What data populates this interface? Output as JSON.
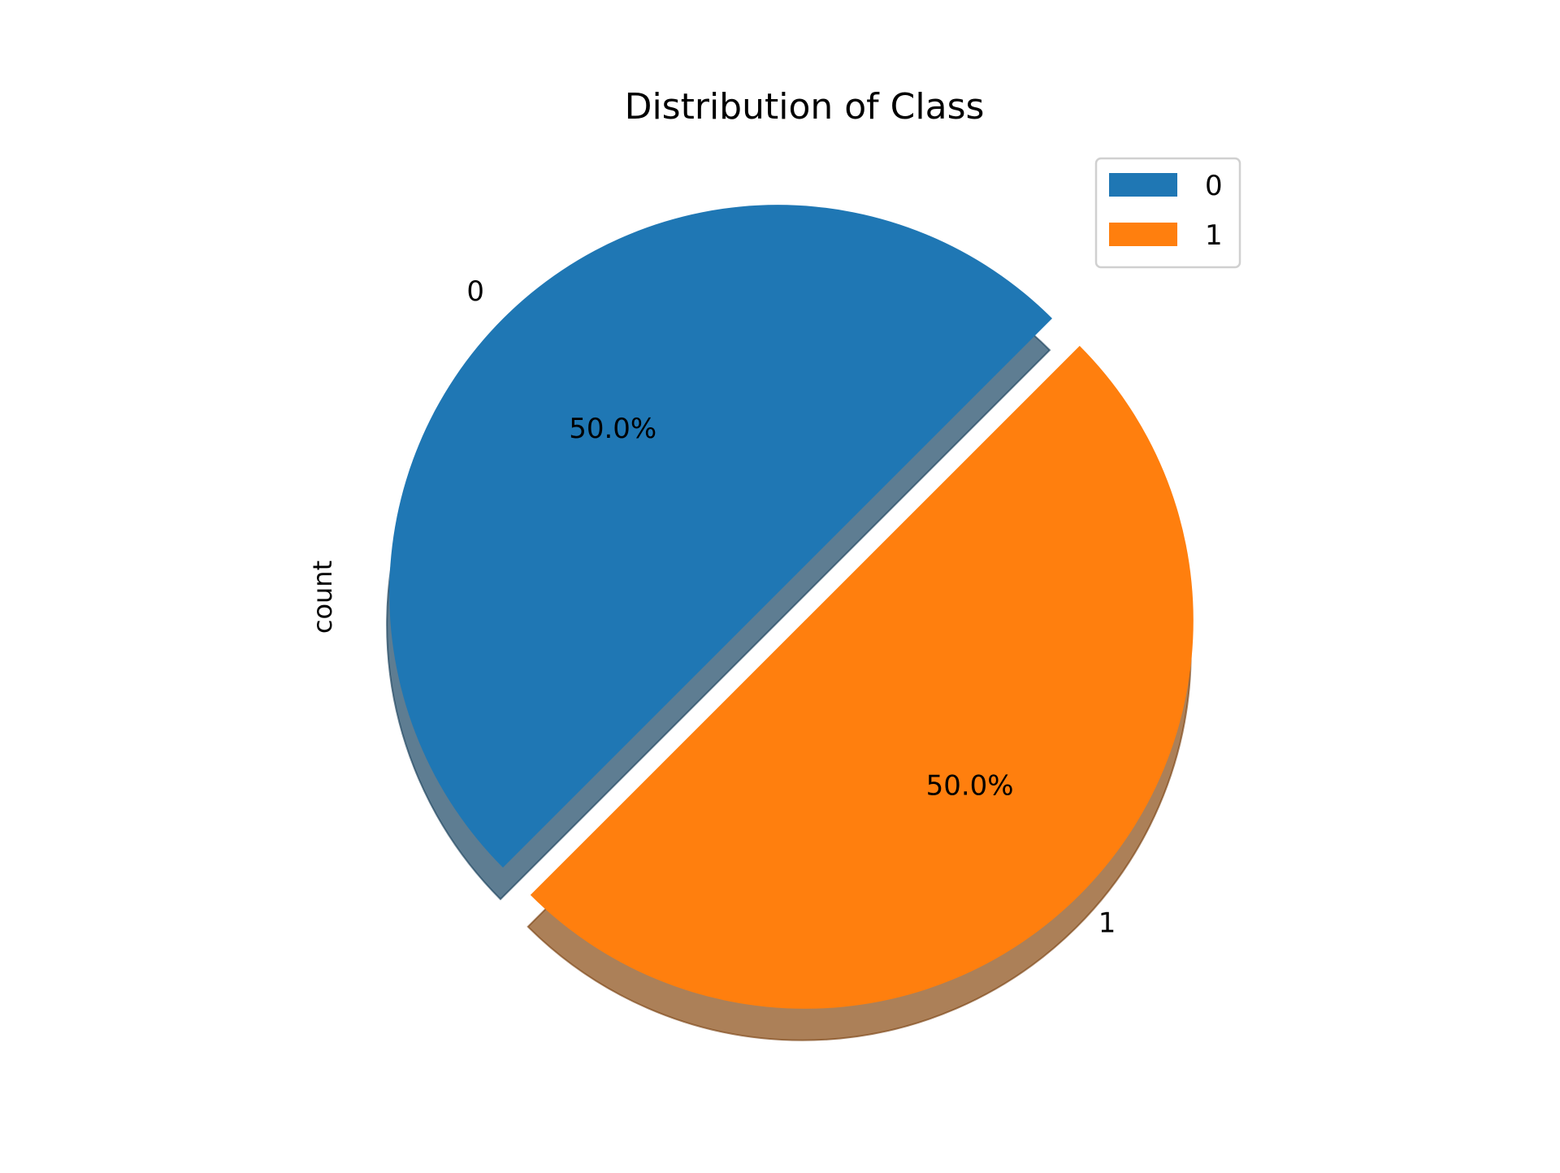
{
  "chart_data": {
    "type": "pie",
    "title": "Distribution of Class",
    "ylabel": "count",
    "categories": [
      "0",
      "1"
    ],
    "values": [
      50.0,
      50.0
    ],
    "percent_labels": [
      "50.0%",
      "50.0%"
    ],
    "explode": [
      0,
      0.1
    ],
    "start_angle_deg": 45,
    "shadow": true,
    "colors": [
      "#1f77b4",
      "#ff7f0e"
    ],
    "legend": {
      "position": "top-right",
      "entries": [
        "0",
        "1"
      ]
    }
  }
}
